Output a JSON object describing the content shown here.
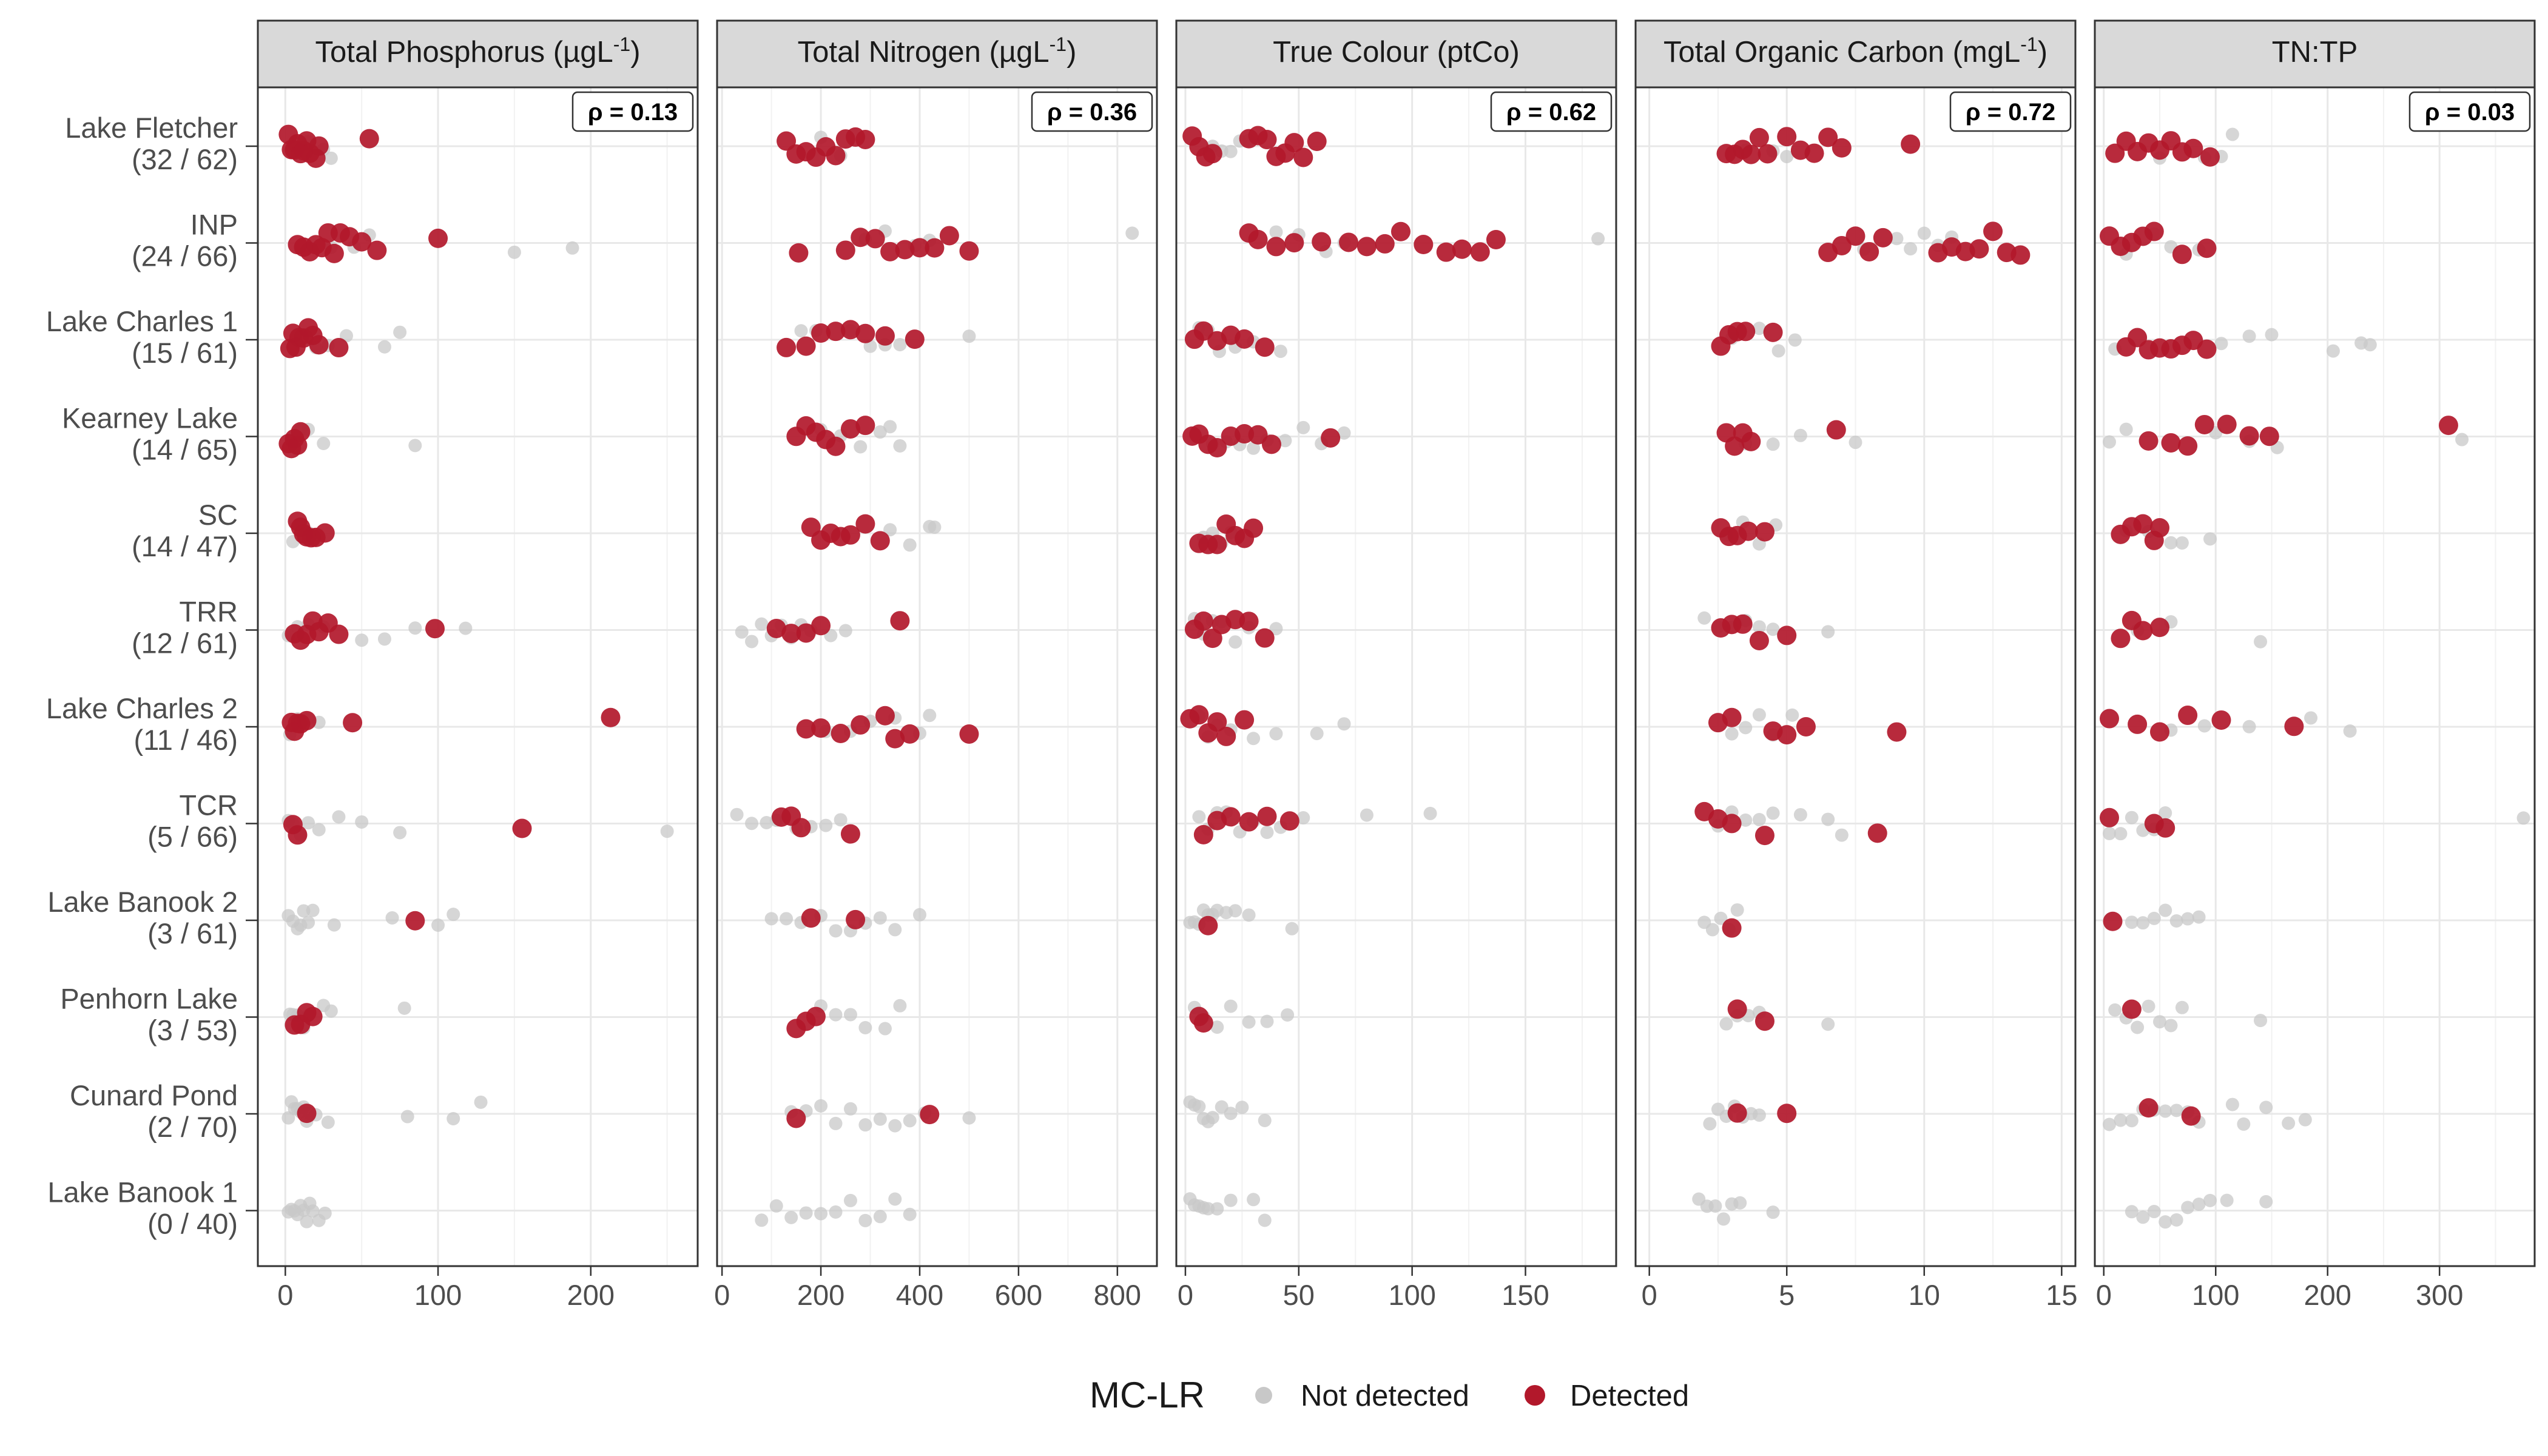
{
  "chart_data": {
    "type": "scatter",
    "layout": "faceted-dot-strip",
    "lakes": [
      {
        "name": "Lake Fletcher",
        "count": "(32 / 62)"
      },
      {
        "name": "INP",
        "count": "(24 / 66)"
      },
      {
        "name": "Lake Charles 1",
        "count": "(15 / 61)"
      },
      {
        "name": "Kearney Lake",
        "count": "(14 / 65)"
      },
      {
        "name": "SC",
        "count": "(14 / 47)"
      },
      {
        "name": "TRR",
        "count": "(12 / 61)"
      },
      {
        "name": "Lake Charles 2",
        "count": "(11 / 46)"
      },
      {
        "name": "TCR",
        "count": "(5 / 66)"
      },
      {
        "name": "Lake Banook 2",
        "count": "(3 / 61)"
      },
      {
        "name": "Penhorn Lake",
        "count": "(3 / 53)"
      },
      {
        "name": "Cunard Pond",
        "count": "(2 / 70)"
      },
      {
        "name": "Lake Banook 1",
        "count": "(0 / 40)"
      }
    ],
    "legend": {
      "title": "MC-LR",
      "position": "bottom",
      "items": [
        {
          "label": "Not detected",
          "color": "#c8c8c8"
        },
        {
          "label": "Detected",
          "color": "#b2182b"
        }
      ]
    },
    "panels": [
      {
        "title_main": "Total Phosphorus (µgL",
        "title_sup": "-1",
        "title_end": ")",
        "rho": "ρ = 0.13",
        "xlim": [
          -18,
          270
        ],
        "ticks": [
          0,
          100,
          200
        ],
        "tick_labels": [
          "0",
          "100",
          "200"
        ],
        "detected": [
          [
            2,
            4,
            6,
            8,
            10,
            12,
            14,
            16,
            20,
            22,
            55
          ],
          [
            8,
            12,
            16,
            20,
            24,
            28,
            32,
            36,
            42,
            50,
            60,
            100
          ],
          [
            3,
            5,
            7,
            9,
            12,
            15,
            18,
            22,
            35
          ],
          [
            2,
            4,
            6,
            8,
            10
          ],
          [
            8,
            10,
            12,
            14,
            17,
            20,
            26
          ],
          [
            6,
            10,
            14,
            18,
            22,
            28,
            35,
            98
          ],
          [
            4,
            6,
            8,
            10,
            14,
            44,
            213
          ],
          [
            5,
            8,
            155
          ],
          [
            85
          ],
          [
            6,
            10,
            14,
            18
          ],
          [
            14
          ],
          []
        ],
        "not_detected": [
          [
            5,
            15,
            25,
            30
          ],
          [
            30,
            45,
            55,
            150,
            188
          ],
          [
            20,
            28,
            40,
            65,
            75
          ],
          [
            5,
            10,
            15,
            25,
            85
          ],
          [
            5,
            10,
            15
          ],
          [
            2,
            8,
            15,
            25,
            50,
            65,
            85,
            118
          ],
          [
            3,
            8,
            15,
            22
          ],
          [
            2,
            5,
            10,
            15,
            22,
            35,
            50,
            75,
            250
          ],
          [
            2,
            5,
            8,
            10,
            12,
            15,
            18,
            32,
            70,
            100,
            110
          ],
          [
            3,
            5,
            8,
            12,
            15,
            25,
            30,
            78
          ],
          [
            2,
            4,
            6,
            8,
            10,
            12,
            14,
            16,
            20,
            28,
            80,
            110,
            128
          ],
          [
            2,
            4,
            6,
            8,
            10,
            12,
            14,
            16,
            18,
            22,
            26
          ]
        ]
      },
      {
        "title_main": "Total Nitrogen (µgL",
        "title_sup": "-1",
        "title_end": ")",
        "rho": "ρ = 0.36",
        "xlim": [
          -10,
          880
        ],
        "ticks": [
          0,
          200,
          400,
          600,
          800
        ],
        "tick_labels": [
          "0",
          "200",
          "400",
          "600",
          "800"
        ],
        "detected": [
          [
            130,
            150,
            170,
            190,
            210,
            230,
            250,
            270,
            290
          ],
          [
            155,
            250,
            280,
            310,
            340,
            370,
            400,
            430,
            460,
            500
          ],
          [
            130,
            170,
            200,
            230,
            260,
            290,
            330,
            390
          ],
          [
            150,
            170,
            190,
            210,
            230,
            260,
            290
          ],
          [
            180,
            200,
            220,
            240,
            260,
            290,
            320
          ],
          [
            110,
            140,
            170,
            200,
            360
          ],
          [
            170,
            200,
            240,
            280,
            330,
            350,
            380,
            500
          ],
          [
            120,
            140,
            160,
            260
          ],
          [
            180,
            270
          ],
          [
            150,
            170,
            190
          ],
          [
            150,
            420
          ],
          []
        ],
        "not_detected": [
          [
            200,
            240
          ],
          [
            290,
            330,
            390,
            420,
            830
          ],
          [
            160,
            190,
            260,
            300,
            330,
            360,
            500
          ],
          [
            200,
            240,
            280,
            320,
            340,
            360
          ],
          [
            340,
            380,
            420,
            430
          ],
          [
            40,
            60,
            80,
            100,
            120,
            140,
            160,
            180,
            220,
            250
          ],
          [
            210,
            260,
            300,
            350,
            400,
            420
          ],
          [
            30,
            60,
            90,
            110,
            150,
            180,
            210,
            240
          ],
          [
            100,
            130,
            160,
            200,
            230,
            260,
            290,
            320,
            350,
            400
          ],
          [
            200,
            230,
            260,
            290,
            330,
            360
          ],
          [
            140,
            170,
            200,
            230,
            260,
            290,
            320,
            350,
            380,
            410,
            500
          ],
          [
            80,
            110,
            140,
            170,
            200,
            230,
            260,
            290,
            320,
            350,
            380
          ]
        ]
      },
      {
        "title_main": "True Colour (ptCo)",
        "title_sup": "",
        "title_end": "",
        "rho": "ρ = 0.62",
        "xlim": [
          -4,
          190
        ],
        "ticks": [
          0,
          50,
          100,
          150
        ],
        "tick_labels": [
          "0",
          "50",
          "100",
          "150"
        ],
        "detected": [
          [
            3,
            6,
            9,
            12,
            28,
            32,
            36,
            40,
            44,
            48,
            52,
            58
          ],
          [
            28,
            32,
            40,
            48,
            60,
            72,
            80,
            88,
            95,
            105,
            115,
            122,
            130,
            137
          ],
          [
            4,
            8,
            14,
            20,
            26,
            35
          ],
          [
            3,
            6,
            10,
            14,
            20,
            26,
            32,
            38,
            64
          ],
          [
            6,
            10,
            14,
            18,
            22,
            26,
            30
          ],
          [
            4,
            8,
            12,
            16,
            22,
            28,
            35
          ],
          [
            2,
            6,
            10,
            14,
            18,
            26
          ],
          [
            8,
            14,
            20,
            28,
            36,
            46
          ],
          [
            10
          ],
          [
            6,
            8
          ],
          [],
          []
        ],
        "not_detected": [
          [
            12,
            16,
            20,
            24,
            28
          ],
          [
            40,
            50,
            62,
            70,
            182
          ],
          [
            6,
            10,
            15,
            22,
            30,
            42
          ],
          [
            12,
            18,
            24,
            30,
            36,
            44,
            52,
            60,
            70
          ],
          [
            8,
            12,
            16,
            20
          ],
          [
            4,
            8,
            12,
            16,
            22,
            28,
            40
          ],
          [
            6,
            10,
            14,
            20,
            30,
            40,
            58,
            70
          ],
          [
            6,
            10,
            14,
            18,
            24,
            30,
            36,
            42,
            52,
            80,
            108
          ],
          [
            2,
            4,
            6,
            8,
            10,
            12,
            14,
            18,
            22,
            28,
            47
          ],
          [
            4,
            8,
            14,
            20,
            28,
            36,
            45
          ],
          [
            2,
            4,
            6,
            8,
            10,
            12,
            16,
            20,
            25,
            35
          ],
          [
            2,
            4,
            6,
            8,
            10,
            14,
            20,
            30,
            35
          ]
        ]
      },
      {
        "title_main": "Total Organic Carbon (mgL",
        "title_sup": "-1",
        "title_end": ")",
        "rho": "ρ = 0.72",
        "xlim": [
          -0.5,
          15.5
        ],
        "ticks": [
          0,
          5,
          10,
          15
        ],
        "tick_labels": [
          "0",
          "5",
          "10",
          "15"
        ],
        "detected": [
          [
            2.8,
            3.1,
            3.4,
            3.7,
            4.0,
            4.3,
            5.0,
            5.5,
            6.0,
            6.5,
            7.0,
            9.5
          ],
          [
            6.5,
            7.0,
            7.5,
            8.0,
            8.5,
            10.5,
            11.0,
            11.5,
            12.0,
            12.5,
            13.0,
            13.5
          ],
          [
            2.6,
            2.9,
            3.2,
            3.5,
            4.5
          ],
          [
            2.8,
            3.1,
            3.4,
            3.7,
            6.8
          ],
          [
            2.6,
            2.9,
            3.2,
            3.6,
            4.2
          ],
          [
            2.6,
            3.0,
            3.4,
            4.0,
            5.0
          ],
          [
            2.5,
            3.0,
            4.5,
            5.0,
            5.7,
            9.0
          ],
          [
            2.0,
            2.5,
            3.0,
            4.2,
            8.3
          ],
          [
            3.0
          ],
          [
            3.2,
            4.2
          ],
          [
            3.2,
            5.0
          ],
          []
        ],
        "not_detected": [
          [
            3.5,
            4.5,
            5.0
          ],
          [
            7.8,
            9.0,
            9.5,
            10.0,
            10.5,
            11.0
          ],
          [
            3.0,
            4.0,
            4.7,
            5.3
          ],
          [
            3.5,
            4.5,
            5.5,
            7.5
          ],
          [
            2.8,
            3.4,
            4.0,
            4.6
          ],
          [
            2.0,
            2.5,
            3.0,
            3.5,
            4.0,
            4.5,
            6.5
          ],
          [
            3.0,
            3.5,
            4.0,
            4.5,
            5.2
          ],
          [
            2.5,
            3.0,
            3.5,
            4.0,
            4.5,
            5.5,
            6.5,
            7.0
          ],
          [
            2.0,
            2.3,
            2.6,
            2.9,
            3.2
          ],
          [
            2.8,
            3.2,
            3.6,
            4.0,
            6.5
          ],
          [
            2.2,
            2.5,
            2.8,
            3.1,
            3.4,
            3.7,
            4.0
          ],
          [
            1.8,
            2.1,
            2.4,
            2.7,
            3.0,
            3.3,
            4.5
          ]
        ]
      },
      {
        "title_main": "TN:TP",
        "title_sup": "",
        "title_end": "",
        "rho": "ρ = 0.03",
        "xlim": [
          -8,
          385
        ],
        "ticks": [
          0,
          100,
          200,
          300
        ],
        "tick_labels": [
          "0",
          "100",
          "200",
          "300"
        ],
        "detected": [
          [
            10,
            20,
            30,
            40,
            50,
            60,
            70,
            80,
            95
          ],
          [
            5,
            15,
            25,
            35,
            45,
            70,
            92
          ],
          [
            20,
            30,
            40,
            50,
            60,
            70,
            80,
            92
          ],
          [
            40,
            60,
            75,
            90,
            110,
            130,
            148,
            308
          ],
          [
            15,
            25,
            35,
            45,
            50
          ],
          [
            15,
            25,
            35,
            50
          ],
          [
            5,
            30,
            50,
            75,
            105,
            170
          ],
          [
            5,
            45,
            55
          ],
          [
            8
          ],
          [
            25
          ],
          [
            40,
            78
          ],
          []
        ],
        "not_detected": [
          [
            50,
            90,
            105,
            115
          ],
          [
            20,
            45,
            60,
            85
          ],
          [
            10,
            105,
            130,
            150,
            205,
            230,
            238
          ],
          [
            5,
            20,
            100,
            130,
            155,
            320
          ],
          [
            20,
            40,
            60,
            70,
            95
          ],
          [
            30,
            60,
            140
          ],
          [
            60,
            90,
            130,
            185,
            220
          ],
          [
            5,
            15,
            25,
            35,
            45,
            55,
            375
          ],
          [
            25,
            35,
            45,
            55,
            65,
            75,
            85
          ],
          [
            10,
            20,
            30,
            40,
            50,
            60,
            70,
            140
          ],
          [
            5,
            15,
            25,
            35,
            45,
            55,
            65,
            75,
            85,
            115,
            125,
            145,
            165,
            180
          ],
          [
            25,
            35,
            45,
            55,
            65,
            75,
            85,
            95,
            110,
            145
          ]
        ]
      }
    ]
  }
}
